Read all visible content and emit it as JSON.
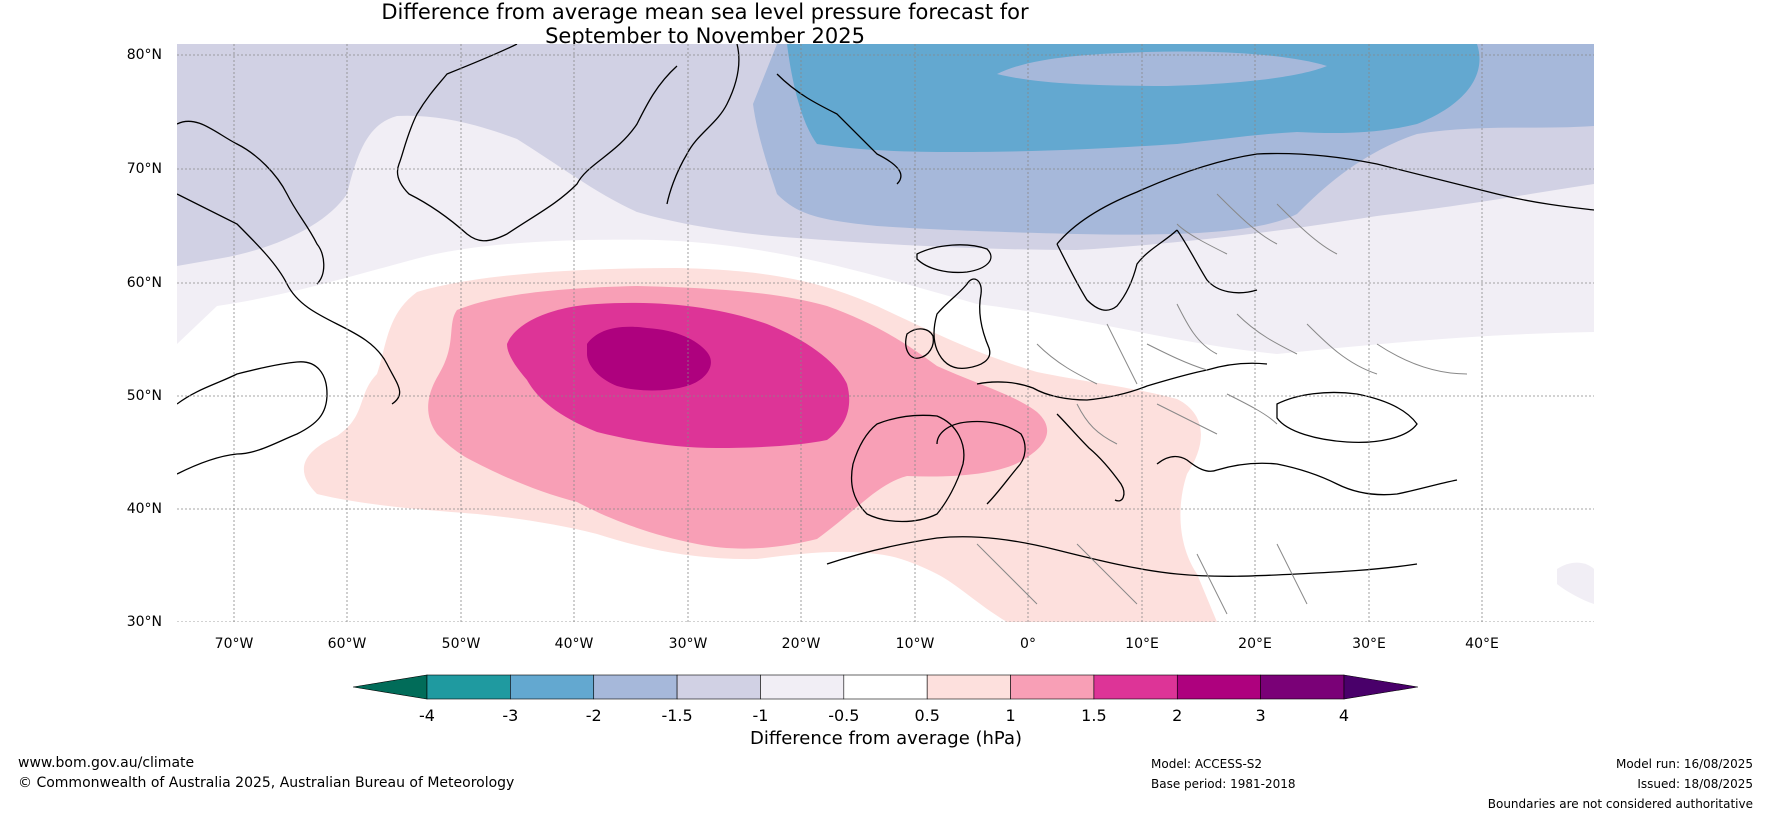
{
  "title_line1": "Difference from average mean sea level pressure forecast for",
  "title_line2": "September to November 2025",
  "latitude_labels": [
    "80°N",
    "70°N",
    "60°N",
    "50°N",
    "40°N",
    "30°N"
  ],
  "longitude_labels": [
    "70°W",
    "60°W",
    "50°W",
    "40°W",
    "30°W",
    "20°W",
    "10°W",
    "0°",
    "10°E",
    "20°E",
    "30°E",
    "40°E"
  ],
  "colorbar": {
    "ticks": [
      "-4",
      "-3",
      "-2",
      "-1.5",
      "-1",
      "-0.5",
      "0.5",
      "1",
      "1.5",
      "2",
      "3",
      "4"
    ],
    "colors": [
      "#0f7a6c",
      "#1f9aa0",
      "#63a8d0",
      "#a6b8da",
      "#d1d1e4",
      "#f1eef5",
      "#ffffff",
      "#fde0dd",
      "#f89fb6",
      "#dd3497",
      "#ae017e",
      "#7a0177"
    ],
    "under_color": "#016c59",
    "over_color": "#49006a",
    "label": "Difference from average (hPa)"
  },
  "footer": {
    "website": "www.bom.gov.au/climate",
    "copyright": "© Commonwealth of Australia 2025, Australian Bureau of Meteorology",
    "model": "Model: ACCESS-S2",
    "base_period": "Base period: 1981-2018",
    "model_run": "Model run: 16/08/2025",
    "issued": "Issued: 18/08/2025",
    "disclaimer": "Boundaries are not considered authoritative"
  }
}
